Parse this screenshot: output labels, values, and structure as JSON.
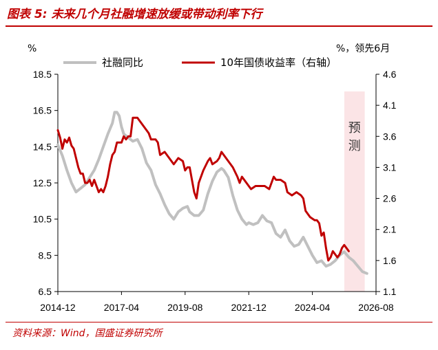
{
  "figure": {
    "title": "图表 5: 未来几个月社融增速放缓或带动利率下行",
    "source": "资料来源：Wind，国盛证券研究所"
  },
  "chart_data": {
    "type": "line",
    "left_unit": "%",
    "right_unit": "%，领先6月",
    "left_ylim": [
      6.5,
      18.5
    ],
    "left_ticks": [
      "18.5",
      "16.5",
      "14.5",
      "12.5",
      "10.5",
      "8.5",
      "6.5"
    ],
    "right_ylim": [
      1.1,
      4.6
    ],
    "right_ticks": [
      "4.6",
      "4.1",
      "3.6",
      "3.1",
      "2.6",
      "2.1",
      "1.6",
      "1.1"
    ],
    "x_tick_labels": [
      "2014-12",
      "2017-04",
      "2019-08",
      "2021-12",
      "2024-04",
      "2026-08"
    ],
    "x_tick_dates": [
      2014.917,
      2017.25,
      2019.583,
      2021.917,
      2024.25,
      2026.583
    ],
    "forecast_region": {
      "label": "预测",
      "start": 2025.42,
      "end": 2026.17
    },
    "colors": {
      "series1": "#c0c0c0",
      "series2": "#c00000",
      "forecast_fill": "#fbe4e6",
      "axis": "#000000",
      "title": "#c00000"
    },
    "series": [
      {
        "name": "社融同比",
        "axis": "left",
        "points": [
          [
            2014.917,
            14.6
          ],
          [
            2015.083,
            14.0
          ],
          [
            2015.25,
            13.2
          ],
          [
            2015.417,
            12.5
          ],
          [
            2015.583,
            12.0
          ],
          [
            2015.75,
            12.2
          ],
          [
            2015.917,
            12.4
          ],
          [
            2016.083,
            12.8
          ],
          [
            2016.25,
            13.2
          ],
          [
            2016.417,
            13.8
          ],
          [
            2016.583,
            14.5
          ],
          [
            2016.75,
            15.2
          ],
          [
            2016.917,
            15.8
          ],
          [
            2017.0,
            16.4
          ],
          [
            2017.083,
            16.4
          ],
          [
            2017.167,
            16.2
          ],
          [
            2017.25,
            15.6
          ],
          [
            2017.333,
            15.2
          ],
          [
            2017.5,
            15.0
          ],
          [
            2017.667,
            14.8
          ],
          [
            2017.833,
            14.9
          ],
          [
            2018.0,
            14.4
          ],
          [
            2018.167,
            13.6
          ],
          [
            2018.333,
            13.2
          ],
          [
            2018.5,
            12.4
          ],
          [
            2018.667,
            11.9
          ],
          [
            2018.833,
            11.3
          ],
          [
            2019.0,
            10.8
          ],
          [
            2019.167,
            10.5
          ],
          [
            2019.333,
            10.9
          ],
          [
            2019.5,
            11.1
          ],
          [
            2019.667,
            11.2
          ],
          [
            2019.75,
            10.9
          ],
          [
            2019.917,
            10.7
          ],
          [
            2020.083,
            10.7
          ],
          [
            2020.25,
            11.0
          ],
          [
            2020.417,
            11.9
          ],
          [
            2020.583,
            12.6
          ],
          [
            2020.75,
            13.1
          ],
          [
            2020.917,
            13.3
          ],
          [
            2021.0,
            13.2
          ],
          [
            2021.167,
            12.8
          ],
          [
            2021.333,
            11.8
          ],
          [
            2021.5,
            11.0
          ],
          [
            2021.667,
            10.5
          ],
          [
            2021.833,
            10.2
          ],
          [
            2021.917,
            10.3
          ],
          [
            2022.083,
            10.2
          ],
          [
            2022.25,
            10.3
          ],
          [
            2022.417,
            10.7
          ],
          [
            2022.583,
            10.4
          ],
          [
            2022.75,
            10.3
          ],
          [
            2022.917,
            9.7
          ],
          [
            2023.083,
            9.5
          ],
          [
            2023.25,
            9.9
          ],
          [
            2023.417,
            9.3
          ],
          [
            2023.583,
            9.0
          ],
          [
            2023.75,
            9.1
          ],
          [
            2023.917,
            9.5
          ],
          [
            2024.083,
            9.0
          ],
          [
            2024.25,
            8.5
          ],
          [
            2024.417,
            8.1
          ],
          [
            2024.583,
            8.2
          ],
          [
            2024.75,
            7.9
          ],
          [
            2024.917,
            8.0
          ],
          [
            2025.083,
            8.2
          ],
          [
            2025.25,
            8.5
          ],
          [
            2025.417,
            8.7
          ],
          [
            2025.583,
            8.4
          ],
          [
            2025.75,
            8.2
          ],
          [
            2025.917,
            7.9
          ],
          [
            2026.083,
            7.6
          ],
          [
            2026.25,
            7.5
          ]
        ]
      },
      {
        "name": "10年国债收益率（右轴）",
        "axis": "right",
        "points": [
          [
            2014.917,
            3.7
          ],
          [
            2015.0,
            3.58
          ],
          [
            2015.083,
            3.4
          ],
          [
            2015.167,
            3.55
          ],
          [
            2015.25,
            3.5
          ],
          [
            2015.333,
            3.58
          ],
          [
            2015.417,
            3.45
          ],
          [
            2015.5,
            3.4
          ],
          [
            2015.583,
            3.25
          ],
          [
            2015.667,
            3.1
          ],
          [
            2015.75,
            3.0
          ],
          [
            2015.833,
            3.0
          ],
          [
            2015.917,
            2.85
          ],
          [
            2016.0,
            2.85
          ],
          [
            2016.083,
            2.9
          ],
          [
            2016.167,
            2.8
          ],
          [
            2016.25,
            2.9
          ],
          [
            2016.333,
            2.8
          ],
          [
            2016.417,
            2.7
          ],
          [
            2016.5,
            2.75
          ],
          [
            2016.583,
            2.7
          ],
          [
            2016.667,
            2.8
          ],
          [
            2016.75,
            2.95
          ],
          [
            2016.833,
            3.15
          ],
          [
            2016.917,
            3.3
          ],
          [
            2017.0,
            3.35
          ],
          [
            2017.083,
            3.5
          ],
          [
            2017.25,
            3.5
          ],
          [
            2017.333,
            3.6
          ],
          [
            2017.417,
            3.55
          ],
          [
            2017.5,
            3.6
          ],
          [
            2017.583,
            3.6
          ],
          [
            2017.667,
            3.9
          ],
          [
            2017.75,
            3.9
          ],
          [
            2017.833,
            3.9
          ],
          [
            2017.917,
            3.85
          ],
          [
            2018.0,
            3.8
          ],
          [
            2018.167,
            3.7
          ],
          [
            2018.25,
            3.65
          ],
          [
            2018.333,
            3.55
          ],
          [
            2018.5,
            3.55
          ],
          [
            2018.583,
            3.5
          ],
          [
            2018.667,
            3.3
          ],
          [
            2018.833,
            3.35
          ],
          [
            2019.0,
            3.25
          ],
          [
            2019.167,
            3.15
          ],
          [
            2019.333,
            3.25
          ],
          [
            2019.5,
            3.2
          ],
          [
            2019.583,
            3.05
          ],
          [
            2019.667,
            3.1
          ],
          [
            2019.75,
            3.1
          ],
          [
            2019.833,
            2.9
          ],
          [
            2019.917,
            2.7
          ],
          [
            2020.0,
            2.6
          ],
          [
            2020.083,
            2.85
          ],
          [
            2020.25,
            3.05
          ],
          [
            2020.417,
            3.2
          ],
          [
            2020.5,
            3.25
          ],
          [
            2020.583,
            3.15
          ],
          [
            2020.75,
            3.2
          ],
          [
            2020.833,
            3.25
          ],
          [
            2020.917,
            3.35
          ],
          [
            2021.0,
            3.3
          ],
          [
            2021.167,
            3.2
          ],
          [
            2021.333,
            3.1
          ],
          [
            2021.5,
            2.95
          ],
          [
            2021.583,
            2.85
          ],
          [
            2021.667,
            2.95
          ],
          [
            2021.833,
            2.85
          ],
          [
            2021.917,
            2.8
          ],
          [
            2022.0,
            2.75
          ],
          [
            2022.167,
            2.8
          ],
          [
            2022.333,
            2.8
          ],
          [
            2022.5,
            2.8
          ],
          [
            2022.667,
            2.75
          ],
          [
            2022.75,
            2.85
          ],
          [
            2022.833,
            2.95
          ],
          [
            2022.917,
            2.9
          ],
          [
            2023.083,
            2.9
          ],
          [
            2023.25,
            2.85
          ],
          [
            2023.333,
            2.7
          ],
          [
            2023.5,
            2.65
          ],
          [
            2023.667,
            2.7
          ],
          [
            2023.833,
            2.65
          ],
          [
            2023.917,
            2.6
          ],
          [
            2024.0,
            2.4
          ],
          [
            2024.167,
            2.3
          ],
          [
            2024.333,
            2.25
          ],
          [
            2024.417,
            2.25
          ],
          [
            2024.5,
            2.2
          ],
          [
            2024.583,
            2.0
          ],
          [
            2024.667,
            2.05
          ],
          [
            2024.75,
            1.8
          ],
          [
            2024.833,
            1.6
          ],
          [
            2024.917,
            1.65
          ],
          [
            2025.0,
            1.75
          ],
          [
            2025.083,
            1.7
          ],
          [
            2025.167,
            1.65
          ],
          [
            2025.25,
            1.7
          ],
          [
            2025.333,
            1.8
          ],
          [
            2025.417,
            1.85
          ],
          [
            2025.5,
            1.8
          ],
          [
            2025.583,
            1.75
          ]
        ]
      }
    ]
  }
}
